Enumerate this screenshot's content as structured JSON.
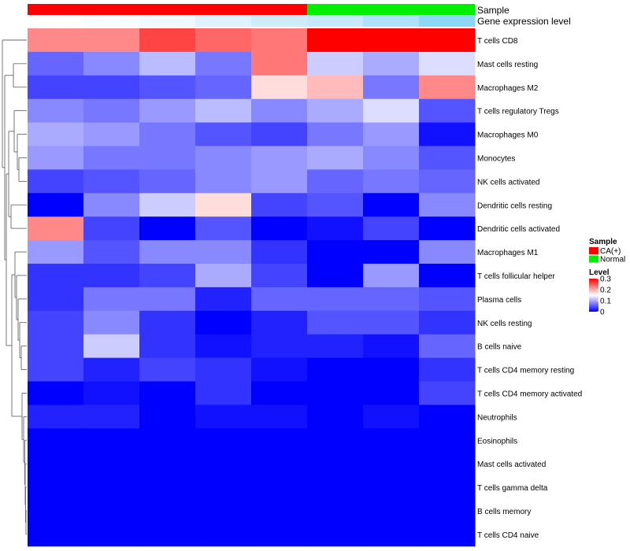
{
  "chart_data": {
    "type": "heatmap",
    "title": "",
    "annotation_labels": {
      "sample": "Sample",
      "gene": "Gene expression level"
    },
    "samples": [
      "CA(+)",
      "CA(+)",
      "CA(+)",
      "CA(+)",
      "CA(+)",
      "Normal",
      "Normal",
      "Normal"
    ],
    "gene_expression": [
      0.0,
      0.05,
      0.1,
      0.2,
      0.3,
      0.35,
      0.5,
      0.7
    ],
    "rows": [
      "T cells CD8",
      "Mast cells resting",
      "Macrophages M2",
      "T cells regulatory  Tregs",
      "Macrophages M0",
      "Monocytes",
      "NK cells activated",
      "Dendritic cells resting",
      "Dendritic cells activated",
      "Macrophages M1",
      "T cells follicular helper",
      "Plasma cells",
      "NK cells resting",
      "B cells naive",
      "T cells CD4 memory resting",
      "T cells CD4 memory activated",
      "Neutrophils",
      "Eosinophils",
      "Mast cells activated",
      "T cells gamma delta",
      "B cells memory",
      "T cells CD4 naive"
    ],
    "values": [
      [
        0.22,
        0.22,
        0.26,
        0.24,
        0.23,
        0.3,
        0.3,
        0.3
      ],
      [
        0.06,
        0.08,
        0.11,
        0.07,
        0.23,
        0.12,
        0.1,
        0.13
      ],
      [
        0.04,
        0.04,
        0.05,
        0.06,
        0.17,
        0.19,
        0.07,
        0.22
      ],
      [
        0.08,
        0.07,
        0.09,
        0.11,
        0.08,
        0.1,
        0.13,
        0.05
      ],
      [
        0.1,
        0.09,
        0.07,
        0.05,
        0.04,
        0.07,
        0.09,
        0.01
      ],
      [
        0.09,
        0.07,
        0.07,
        0.08,
        0.09,
        0.1,
        0.08,
        0.05
      ],
      [
        0.04,
        0.05,
        0.06,
        0.08,
        0.09,
        0.06,
        0.07,
        0.06
      ],
      [
        0.0,
        0.08,
        0.12,
        0.17,
        0.04,
        0.05,
        0.0,
        0.08
      ],
      [
        0.22,
        0.04,
        0.0,
        0.05,
        0.0,
        0.01,
        0.04,
        0.0
      ],
      [
        0.09,
        0.05,
        0.08,
        0.08,
        0.03,
        0.0,
        0.0,
        0.08
      ],
      [
        0.03,
        0.03,
        0.04,
        0.1,
        0.04,
        0.0,
        0.09,
        0.0
      ],
      [
        0.03,
        0.07,
        0.07,
        0.02,
        0.06,
        0.06,
        0.06,
        0.05
      ],
      [
        0.04,
        0.08,
        0.03,
        0.0,
        0.02,
        0.05,
        0.05,
        0.03
      ],
      [
        0.04,
        0.12,
        0.03,
        0.01,
        0.02,
        0.02,
        0.01,
        0.06
      ],
      [
        0.04,
        0.02,
        0.04,
        0.03,
        0.01,
        0.0,
        0.0,
        0.03
      ],
      [
        0.0,
        0.01,
        0.0,
        0.03,
        0.0,
        0.0,
        0.0,
        0.04
      ],
      [
        0.02,
        0.02,
        0.0,
        0.01,
        0.01,
        0.0,
        0.01,
        0.0
      ],
      [
        0.0,
        0.0,
        0.0,
        0.0,
        0.0,
        0.0,
        0.0,
        0.0
      ],
      [
        0.0,
        0.0,
        0.0,
        0.0,
        0.0,
        0.0,
        0.0,
        0.0
      ],
      [
        0.0,
        0.0,
        0.0,
        0.0,
        0.0,
        0.0,
        0.0,
        0.0
      ],
      [
        0.0,
        0.0,
        0.0,
        0.0,
        0.0,
        0.0,
        0.0,
        0.0
      ],
      [
        0.0,
        0.0,
        0.0,
        0.0,
        0.0,
        0.0,
        0.0,
        0.0
      ]
    ],
    "scale": {
      "min": 0,
      "max": 0.3,
      "low_color": "#0000ff",
      "mid_color": "#ffffff",
      "high_color": "#ff0000",
      "mid_value": 0.15
    },
    "gene_scale": {
      "low_color": "#ffffff",
      "high_color": "#5bc4f5"
    },
    "legend": {
      "sample_title": "Sample",
      "sample_entries": [
        {
          "label": "CA(+)",
          "color": "#ff0000"
        },
        {
          "label": "Normal",
          "color": "#00ee00"
        }
      ],
      "level_title": "Level",
      "level_ticks": [
        "0.3",
        "0.2",
        "0.1",
        "0"
      ],
      "level_tick_values": [
        0.3,
        0.2,
        0.1,
        0
      ],
      "placement": "right"
    },
    "dendrogram_side": "left"
  }
}
